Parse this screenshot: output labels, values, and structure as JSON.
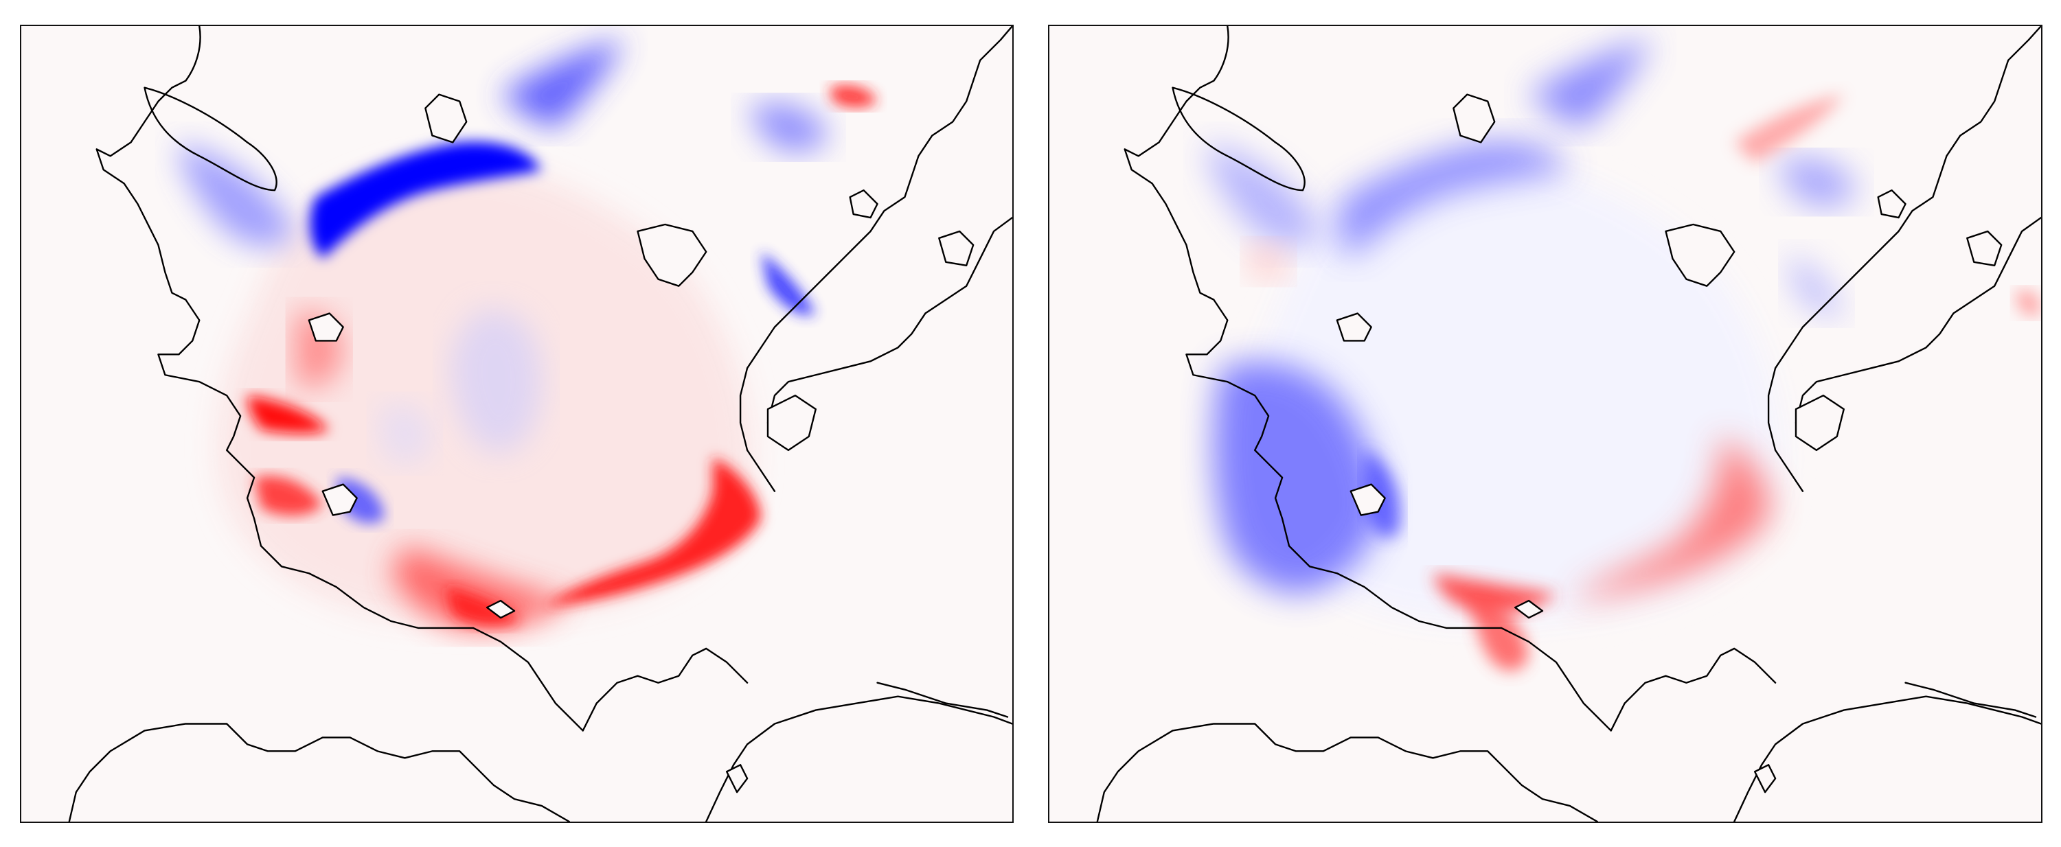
{
  "figure": {
    "panels": [
      {
        "id": "left",
        "colormap": "bwr",
        "background_color": "#fcf8f8",
        "positive_color": "#ff0000",
        "negative_color": "#0000ff",
        "coastline_color": "#000000"
      },
      {
        "id": "right",
        "colormap": "bwr",
        "background_color": "#fcf8f8",
        "positive_color": "#ff0000",
        "negative_color": "#0000ff",
        "coastline_color": "#000000"
      }
    ]
  }
}
